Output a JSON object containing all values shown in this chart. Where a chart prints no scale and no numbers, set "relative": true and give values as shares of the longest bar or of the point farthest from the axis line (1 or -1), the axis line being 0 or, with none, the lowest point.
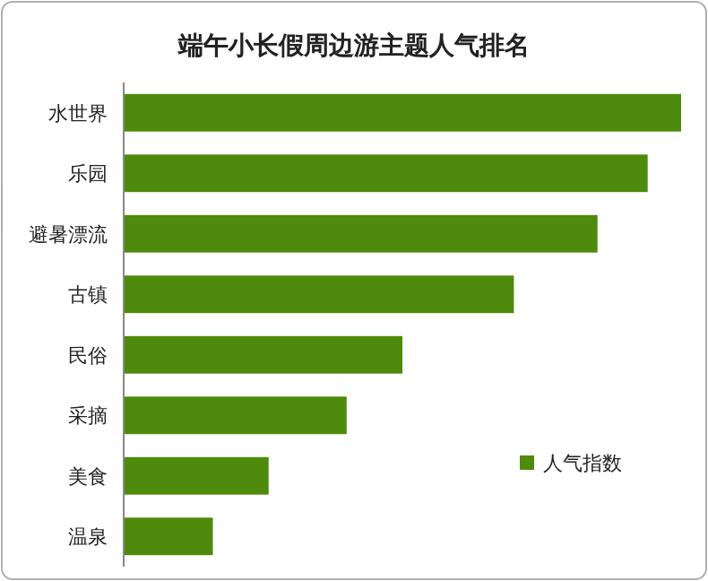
{
  "chart_data": {
    "type": "bar",
    "orientation": "horizontal",
    "relative": true,
    "title": "端午小长假周边游主题人气排名",
    "categories": [
      "水世界",
      "乐园",
      "避暑漂流",
      "古镇",
      "民俗",
      "采摘",
      "美食",
      "温泉"
    ],
    "series": [
      {
        "name": "人气指数",
        "color": "#4e8a0b",
        "values": [
          1,
          0.94,
          0.85,
          0.7,
          0.5,
          0.4,
          0.26,
          0.16
        ]
      }
    ],
    "legend": "bottom right"
  }
}
